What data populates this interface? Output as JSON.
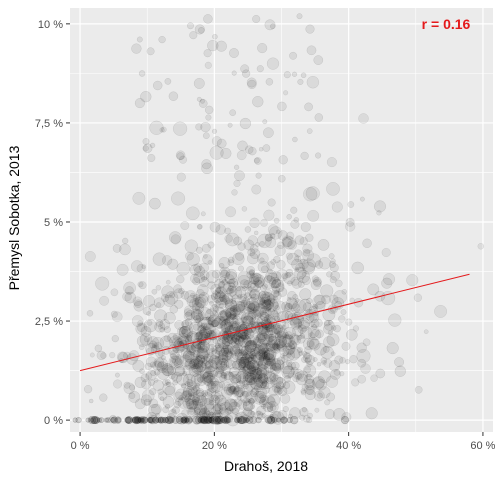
{
  "chart_data": {
    "type": "scatter",
    "title": "",
    "xlabel": "Drahoš, 2018",
    "ylabel": "Přemysl Sobotka, 2013",
    "xlim": [
      -1.5,
      61.5
    ],
    "ylim": [
      -0.3,
      10.4
    ],
    "xticks": [
      {
        "value": 0,
        "label": "0 %"
      },
      {
        "value": 20,
        "label": "20 %"
      },
      {
        "value": 40,
        "label": "40 %"
      },
      {
        "value": 60,
        "label": "60 %"
      }
    ],
    "yticks": [
      {
        "value": 0,
        "label": "0 %"
      },
      {
        "value": 2.5,
        "label": "2,5 %"
      },
      {
        "value": 5,
        "label": "5 %"
      },
      {
        "value": 7.5,
        "label": "7,5 %"
      },
      {
        "value": 10,
        "label": "10 %"
      }
    ],
    "grid": true,
    "legend": "none",
    "point_color": "#000000",
    "point_alpha": 0.08,
    "approx_point_count": 1650,
    "trend_line": {
      "color": "#e41a1c",
      "x": [
        0,
        58
      ],
      "y": [
        1.25,
        3.68
      ]
    },
    "annotation": {
      "text": "r = 0.16",
      "x": 54.5,
      "y": 10.0,
      "color": "#e41a1c"
    }
  },
  "colors": {
    "panel_background": "#ebebeb",
    "grid": "#ffffff",
    "trend": "#e41a1c"
  }
}
